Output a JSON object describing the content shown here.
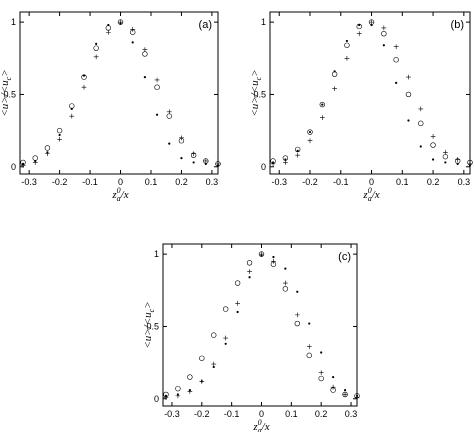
{
  "chart_data": [
    {
      "type": "scatter",
      "panel_label": "(a)",
      "xlabel": "z_a^0/x",
      "ylabel": "<u>/<u_c>",
      "xlim": [
        -0.33,
        0.32
      ],
      "ylim": [
        -0.05,
        1.07
      ],
      "xticks": [
        "-0.3",
        "-0.2",
        "-0.1",
        "0",
        "0.1",
        "0.2",
        "0.3"
      ],
      "yticks": [
        "0",
        "0.5",
        "1"
      ],
      "series": [
        {
          "marker": "circle",
          "x": [
            -0.32,
            -0.28,
            -0.24,
            -0.2,
            -0.16,
            -0.12,
            -0.08,
            -0.04,
            0.0,
            0.04,
            0.08,
            0.12,
            0.16,
            0.2,
            0.24,
            0.28,
            0.32
          ],
          "y": [
            0.03,
            0.06,
            0.13,
            0.25,
            0.42,
            0.62,
            0.82,
            0.96,
            1.0,
            0.93,
            0.78,
            0.55,
            0.35,
            0.18,
            0.08,
            0.04,
            0.02
          ]
        },
        {
          "marker": "plus",
          "x": [
            -0.32,
            -0.28,
            -0.24,
            -0.2,
            -0.16,
            -0.12,
            -0.08,
            -0.04,
            0.0,
            0.04,
            0.08,
            0.12,
            0.16,
            0.2,
            0.24,
            0.28,
            0.32
          ],
          "y": [
            0.01,
            0.03,
            0.09,
            0.19,
            0.35,
            0.55,
            0.76,
            0.93,
            1.0,
            0.95,
            0.81,
            0.6,
            0.38,
            0.2,
            0.09,
            0.04,
            0.02
          ]
        },
        {
          "marker": "dot",
          "x": [
            -0.32,
            -0.28,
            -0.24,
            -0.2,
            -0.16,
            -0.12,
            -0.08,
            -0.04,
            0.0,
            0.04,
            0.08,
            0.12,
            0.16,
            0.2,
            0.24,
            0.28,
            0.32
          ],
          "y": [
            0.02,
            0.04,
            0.1,
            0.22,
            0.4,
            0.63,
            0.85,
            0.98,
            0.99,
            0.86,
            0.62,
            0.36,
            0.16,
            0.06,
            0.03,
            0.02,
            0.01
          ]
        }
      ]
    },
    {
      "type": "scatter",
      "panel_label": "(b)",
      "xlabel": "z_a^0/x",
      "ylabel": "<u>/<u_c>",
      "xlim": [
        -0.33,
        0.32
      ],
      "ylim": [
        -0.05,
        1.07
      ],
      "xticks": [
        "-0.3",
        "-0.2",
        "-0.1",
        "0",
        "0.1",
        "0.2",
        "0.3"
      ],
      "yticks": [
        "0",
        "0.5",
        "1"
      ],
      "series": [
        {
          "marker": "circle",
          "x": [
            -0.32,
            -0.28,
            -0.24,
            -0.2,
            -0.16,
            -0.12,
            -0.08,
            -0.04,
            0.0,
            0.04,
            0.08,
            0.12,
            0.16,
            0.2,
            0.24,
            0.28,
            0.32
          ],
          "y": [
            0.04,
            0.06,
            0.12,
            0.24,
            0.43,
            0.64,
            0.84,
            0.97,
            1.0,
            0.92,
            0.74,
            0.5,
            0.3,
            0.15,
            0.07,
            0.04,
            0.03
          ]
        },
        {
          "marker": "plus",
          "x": [
            -0.32,
            -0.28,
            -0.24,
            -0.2,
            -0.16,
            -0.12,
            -0.08,
            -0.04,
            0.0,
            0.04,
            0.08,
            0.12,
            0.16,
            0.2,
            0.24,
            0.28,
            0.32
          ],
          "y": [
            0.02,
            0.03,
            0.08,
            0.18,
            0.34,
            0.54,
            0.75,
            0.92,
            1.0,
            0.96,
            0.83,
            0.62,
            0.4,
            0.21,
            0.1,
            0.05,
            0.02
          ]
        },
        {
          "marker": "dot",
          "x": [
            -0.32,
            -0.28,
            -0.24,
            -0.2,
            -0.16,
            -0.12,
            -0.08,
            -0.04,
            0.0,
            0.04,
            0.08,
            0.12,
            0.16,
            0.2,
            0.24,
            0.28,
            0.32
          ],
          "y": [
            0.03,
            0.05,
            0.11,
            0.24,
            0.43,
            0.66,
            0.87,
            0.98,
            0.98,
            0.84,
            0.58,
            0.32,
            0.14,
            0.05,
            0.03,
            0.02,
            0.01
          ]
        }
      ]
    },
    {
      "type": "scatter",
      "panel_label": "(c)",
      "xlabel": "z_a^0/x",
      "ylabel": "<u>/<u_c>",
      "xlim": [
        -0.33,
        0.32
      ],
      "ylim": [
        -0.05,
        1.07
      ],
      "xticks": [
        "-0.3",
        "-0.2",
        "-0.1",
        "0",
        "0.1",
        "0.2",
        "0.3"
      ],
      "yticks": [
        "0",
        "0.5",
        "1"
      ],
      "series": [
        {
          "marker": "circle",
          "x": [
            -0.32,
            -0.28,
            -0.24,
            -0.2,
            -0.16,
            -0.12,
            -0.08,
            -0.04,
            0.0,
            0.04,
            0.08,
            0.12,
            0.16,
            0.2,
            0.24,
            0.28,
            0.32
          ],
          "y": [
            0.03,
            0.07,
            0.15,
            0.28,
            0.44,
            0.62,
            0.8,
            0.94,
            1.0,
            0.93,
            0.76,
            0.52,
            0.3,
            0.14,
            0.06,
            0.03,
            0.02
          ]
        },
        {
          "marker": "plus",
          "x": [
            -0.32,
            -0.28,
            -0.24,
            -0.2,
            -0.16,
            -0.12,
            -0.08,
            -0.04,
            0.0,
            0.04,
            0.08,
            0.12,
            0.16,
            0.2,
            0.24,
            0.28,
            0.32
          ],
          "y": [
            0.01,
            0.02,
            0.05,
            0.12,
            0.24,
            0.42,
            0.66,
            0.88,
            1.0,
            0.95,
            0.8,
            0.58,
            0.36,
            0.18,
            0.08,
            0.03,
            0.01
          ]
        },
        {
          "marker": "dot",
          "x": [
            -0.32,
            -0.28,
            -0.24,
            -0.2,
            -0.16,
            -0.12,
            -0.08,
            -0.04,
            0.0,
            0.04,
            0.08,
            0.12,
            0.16,
            0.2,
            0.24,
            0.28,
            0.32
          ],
          "y": [
            0.02,
            0.03,
            0.06,
            0.12,
            0.22,
            0.38,
            0.6,
            0.84,
            0.99,
            0.98,
            0.9,
            0.74,
            0.52,
            0.32,
            0.15,
            0.06,
            0.02
          ]
        }
      ]
    }
  ]
}
